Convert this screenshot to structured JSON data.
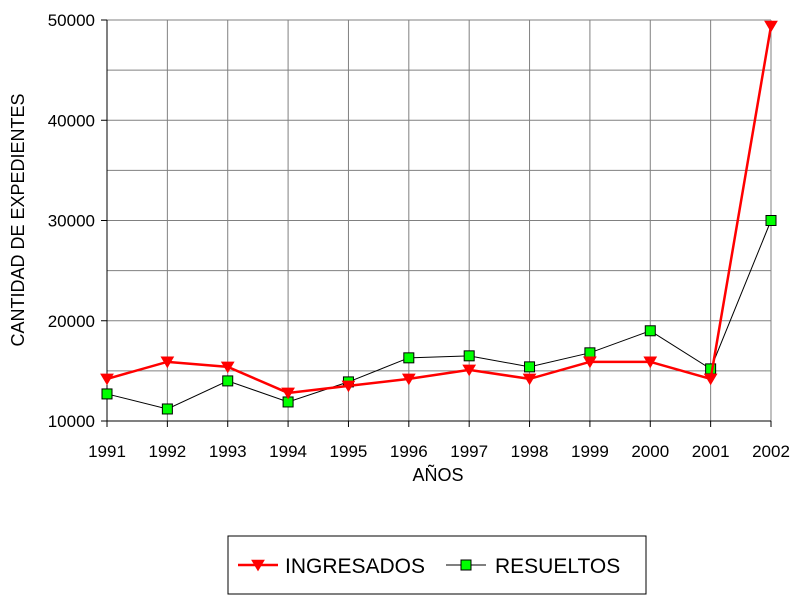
{
  "chart_data": {
    "type": "line",
    "xlabel": "AÑOS",
    "ylabel": "CANTIDAD DE EXPEDIENTES",
    "categories": [
      "1991",
      "1992",
      "1993",
      "1994",
      "1995",
      "1996",
      "1997",
      "1998",
      "1999",
      "2000",
      "2001",
      "2002"
    ],
    "ylim": [
      10000,
      50000
    ],
    "yticks": [
      "10000",
      "20000",
      "30000",
      "40000",
      "50000"
    ],
    "grid": true,
    "legend_position": "bottom-center",
    "series": [
      {
        "name": "INGRESADOS",
        "color": "#ff0000",
        "marker": "triangle-down",
        "values": [
          14200,
          15900,
          15400,
          12800,
          13500,
          14200,
          15100,
          14200,
          15900,
          15900,
          14200,
          49400
        ]
      },
      {
        "name": "RESUELTOS",
        "color": "#000000",
        "marker_color": "#00ff00",
        "marker": "square",
        "values": [
          12700,
          11200,
          14000,
          11900,
          13900,
          16300,
          16500,
          15400,
          16800,
          19000,
          15200,
          30000
        ]
      }
    ]
  }
}
